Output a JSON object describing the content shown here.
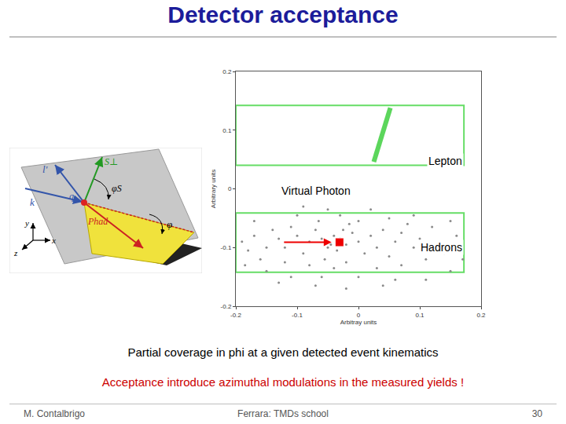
{
  "slide": {
    "title": "Detector acceptance",
    "caption": "Partial coverage in phi at a given detected event kinematics",
    "note": "Acceptance introduce azimuthal modulations in the measured yields !",
    "footer": {
      "author": "M. Contalbrigo",
      "event": "Ferrara: TMDs school",
      "page": 30
    }
  },
  "diagram": {
    "labels": {
      "lprime": "l'",
      "spin": "S⊥",
      "phis": "φS",
      "k": "k",
      "q": "q",
      "phad": "Phad",
      "phi": "φ",
      "y": "y",
      "x": "x",
      "z": "z"
    }
  },
  "chart_data": {
    "type": "scatter",
    "xlabel": "Arbitray units",
    "ylabel": "Arbitrary units",
    "xlim": [
      -0.2,
      0.2
    ],
    "ylim": [
      -0.2,
      0.2
    ],
    "xticks": [
      -0.2,
      -0.1,
      0,
      0.1,
      0.2
    ],
    "yticks": [
      -0.2,
      -0.1,
      0,
      0.1,
      0.2
    ],
    "grid": false,
    "acceptance": {
      "color": "#66dd66",
      "regions": [
        {
          "x0": -0.2,
          "x1": 0.172,
          "y0": 0.04,
          "y1": 0.142
        },
        {
          "x0": -0.2,
          "x1": 0.172,
          "y0": -0.142,
          "y1": -0.041
        }
      ]
    },
    "series": [
      {
        "name": "Hadrons",
        "type": "scatter",
        "marker": "circle",
        "color": "#8a8a8a",
        "x": [
          -0.03,
          -0.02,
          -0.04,
          -0.05,
          -0.01,
          0.0,
          -0.06,
          -0.035,
          -0.025,
          -0.045,
          -0.08,
          -0.07,
          -0.09,
          0.02,
          0.03,
          0.01,
          -0.015,
          -0.055,
          -0.1,
          0.04,
          -0.12,
          -0.11,
          0.06,
          0.05,
          -0.02,
          -0.065,
          0.0,
          -0.13,
          0.07,
          -0.04,
          -0.15,
          -0.14,
          0.09,
          0.08,
          -0.16,
          0.1,
          -0.17,
          0.11,
          -0.08,
          0.03,
          -0.18,
          0.13,
          -0.19,
          0.14,
          -0.1,
          0.05,
          -0.03,
          -0.12,
          0.07,
          0.12,
          -0.06,
          0.0,
          -0.11,
          0.06,
          -0.15,
          0.15,
          0.16,
          -0.17,
          0.09,
          -0.07,
          -0.02,
          0.04,
          -0.13,
          0.11,
          -0.09,
          0.02,
          -0.05,
          0.17,
          -0.185,
          0.15
        ],
        "y": [
          -0.085,
          -0.095,
          -0.08,
          -0.1,
          -0.075,
          -0.09,
          -0.085,
          -0.105,
          -0.07,
          -0.095,
          -0.09,
          -0.07,
          -0.11,
          -0.08,
          -0.1,
          -0.11,
          -0.06,
          -0.12,
          -0.08,
          -0.07,
          -0.1,
          -0.065,
          -0.09,
          -0.115,
          -0.125,
          -0.055,
          -0.055,
          -0.085,
          -0.075,
          -0.135,
          -0.1,
          -0.07,
          -0.1,
          -0.06,
          -0.12,
          -0.085,
          -0.08,
          -0.12,
          -0.13,
          -0.135,
          -0.105,
          -0.09,
          -0.09,
          -0.11,
          -0.045,
          -0.05,
          -0.045,
          -0.125,
          -0.13,
          -0.065,
          -0.15,
          -0.15,
          -0.15,
          -0.155,
          -0.14,
          -0.14,
          -0.08,
          -0.055,
          -0.045,
          -0.165,
          -0.17,
          -0.165,
          -0.16,
          -0.155,
          -0.03,
          -0.035,
          -0.035,
          -0.12,
          -0.13,
          -0.055
        ]
      },
      {
        "name": "Lepton",
        "type": "line",
        "line_style": "solid",
        "color": "#33cc33",
        "x": [
          0.025,
          0.052
        ],
        "y": [
          0.046,
          0.138
        ]
      },
      {
        "name": "Virtual Photon",
        "type": "scatter",
        "marker": "square",
        "color": "#ee0000",
        "x": [
          -0.031
        ],
        "y": [
          -0.091
        ]
      }
    ]
  }
}
